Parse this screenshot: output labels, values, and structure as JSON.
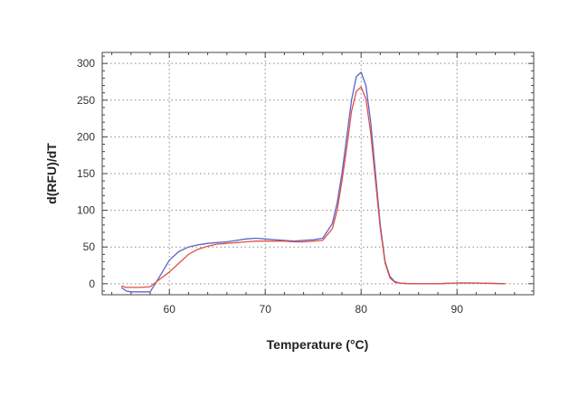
{
  "chart_data": {
    "type": "line",
    "title": "",
    "xlabel": "Temperature (°C)",
    "ylabel": "d(RFU)/dT",
    "xlim": [
      53,
      98
    ],
    "ylim": [
      -15,
      315
    ],
    "xticks": [
      60,
      70,
      80,
      90
    ],
    "yticks": [
      0,
      50,
      100,
      150,
      200,
      250,
      300
    ],
    "grid": true,
    "legend": "none",
    "series": [
      {
        "color": "#5b63c8",
        "x": [
          55,
          55.5,
          56,
          57,
          58,
          59,
          60,
          61,
          62,
          63,
          64,
          65,
          66,
          67,
          68,
          69,
          70,
          71,
          72,
          73,
          74,
          75,
          76,
          77,
          77.5,
          78,
          78.5,
          79,
          79.5,
          80,
          80.5,
          81,
          81.5,
          82,
          82.5,
          83,
          83.5,
          84,
          85,
          86,
          88,
          90,
          92,
          95
        ],
        "y": [
          -5,
          -10,
          -11,
          -11,
          -11,
          10,
          32,
          44,
          50,
          53,
          55,
          56,
          57,
          59,
          61,
          62,
          61,
          60,
          59,
          58,
          59,
          60,
          62,
          82,
          110,
          150,
          200,
          250,
          282,
          288,
          270,
          220,
          150,
          80,
          30,
          10,
          3,
          1,
          0,
          0,
          0,
          1,
          1,
          0
        ]
      },
      {
        "color": "#e05048",
        "x": [
          55,
          55.5,
          56,
          57,
          58,
          59,
          60,
          61,
          62,
          63,
          64,
          65,
          66,
          67,
          68,
          69,
          70,
          71,
          72,
          73,
          74,
          75,
          76,
          77,
          77.5,
          78,
          78.5,
          79,
          79.5,
          80,
          80.5,
          81,
          81.5,
          82,
          82.5,
          83,
          83.5,
          84,
          85,
          86,
          88,
          90,
          92,
          95
        ],
        "y": [
          -3,
          -5,
          -5,
          -5,
          -4,
          6,
          16,
          28,
          40,
          47,
          51,
          54,
          55,
          56,
          57,
          58,
          58,
          58,
          58,
          57,
          57,
          58,
          59,
          75,
          100,
          140,
          185,
          235,
          262,
          268,
          252,
          205,
          140,
          75,
          28,
          8,
          2,
          1,
          0,
          0,
          0,
          1,
          1,
          0
        ]
      }
    ]
  }
}
